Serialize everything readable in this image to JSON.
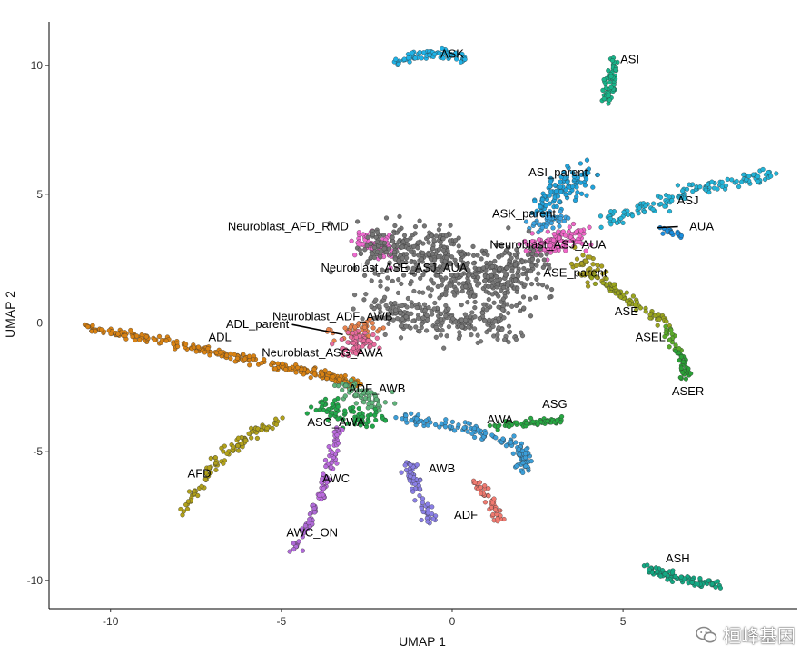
{
  "chart_data": {
    "type": "scatter",
    "title": "",
    "xlabel": "UMAP 1",
    "ylabel": "UMAP 2",
    "xlim": [
      -11.8,
      10.1
    ],
    "ylim": [
      -11.1,
      11.7
    ],
    "xticks": [
      -10,
      -5,
      0,
      5
    ],
    "yticks": [
      -10,
      -5,
      0,
      5,
      10
    ],
    "grid": false,
    "legend": "none",
    "clusters": [
      {
        "label": "ASK",
        "color": "#1fb2e6",
        "label_pos": [
          0,
          10.3
        ],
        "path": [
          [
            -1.8,
            10.1
          ],
          [
            -1.0,
            10.4
          ],
          [
            -0.3,
            10.5
          ],
          [
            0.4,
            10.2
          ]
        ],
        "spread": 0.1,
        "n": 80
      },
      {
        "label": "ASI",
        "color": "#17b58a",
        "label_pos": [
          5.2,
          10.1
        ],
        "path": [
          [
            4.7,
            10.3
          ],
          [
            4.65,
            9.4
          ],
          [
            4.55,
            8.6
          ]
        ],
        "spread": 0.1,
        "n": 60
      },
      {
        "label": "ASJ",
        "color": "#22b4d8",
        "label_pos": [
          6.9,
          4.6
        ],
        "path": [
          [
            4.5,
            4.0
          ],
          [
            6.0,
            4.6
          ],
          [
            7.5,
            5.3
          ],
          [
            9.5,
            5.8
          ]
        ],
        "spread": 0.12,
        "n": 140
      },
      {
        "label": "AUA",
        "color": "#1a8fe0",
        "label_pos": [
          7.3,
          3.6
        ],
        "path": [
          [
            6.1,
            3.7
          ],
          [
            6.7,
            3.45
          ]
        ],
        "spread": 0.08,
        "n": 20
      },
      {
        "label": "ASI_parent",
        "color": "#1fa3dc",
        "label_pos": [
          3.1,
          5.7
        ],
        "path": [
          [
            2.6,
            4.2
          ],
          [
            3.2,
            5.2
          ],
          [
            3.8,
            5.7
          ]
        ],
        "spread": 0.25,
        "n": 120
      },
      {
        "label": "ASK_parent",
        "color": "#3aa2e0",
        "label_pos": [
          2.1,
          4.1
        ],
        "path": [
          [
            2.5,
            3.7
          ],
          [
            3.0,
            4.1
          ]
        ],
        "spread": 0.2,
        "n": 40
      },
      {
        "label": "Neuroblast_ASJ_AUA",
        "color": "#f066c8",
        "label_pos": [
          2.8,
          2.9
        ],
        "path": [
          [
            2.2,
            2.9
          ],
          [
            2.9,
            3.1
          ],
          [
            3.7,
            3.5
          ]
        ],
        "spread": 0.22,
        "n": 120
      },
      {
        "label": "ASE_parent",
        "color": "#a8a020",
        "label_pos": [
          3.6,
          1.8
        ],
        "path": [
          [
            3.6,
            2.5
          ],
          [
            4.2,
            1.8
          ]
        ],
        "spread": 0.2,
        "n": 40
      },
      {
        "label": "ASE",
        "color": "#9aa51e",
        "label_pos": [
          5.1,
          0.3
        ],
        "path": [
          [
            4.2,
            1.8
          ],
          [
            5.3,
            0.8
          ],
          [
            6.2,
            0.0
          ]
        ],
        "spread": 0.1,
        "n": 70
      },
      {
        "label": "ASEL",
        "color": "#5aa92a",
        "label_pos": [
          5.8,
          -0.7
        ],
        "path": [
          [
            6.2,
            -0.1
          ],
          [
            6.6,
            -1.1
          ]
        ],
        "spread": 0.08,
        "n": 25
      },
      {
        "label": "ASER",
        "color": "#2aa035",
        "label_pos": [
          6.9,
          -2.8
        ],
        "path": [
          [
            6.6,
            -1.1
          ],
          [
            6.9,
            -2.1
          ]
        ],
        "spread": 0.08,
        "n": 30
      },
      {
        "label": "Neuroblast_AFD_RMD",
        "color": "#ef6ad0",
        "label_pos": [
          -4.8,
          3.6
        ],
        "path": [
          [
            -2.6,
            3.2
          ],
          [
            -2.2,
            3.0
          ],
          [
            -1.8,
            2.7
          ]
        ],
        "spread": 0.25,
        "n": 70
      },
      {
        "label": "Neuroblast_ASE_ASJ_AUA",
        "color": "#757575",
        "label_pos": [
          -1.7,
          2.0
        ],
        "path": [
          [
            -2.2,
            3.0
          ],
          [
            -1.0,
            2.6
          ],
          [
            0.3,
            2.0
          ],
          [
            1.2,
            1.4
          ],
          [
            2.2,
            2.4
          ]
        ],
        "spread": 0.55,
        "n": 600
      },
      {
        "label": "Neuroblast_ADF_AWB",
        "color": "#7a7a7a",
        "label_pos": [
          -3.5,
          0.1
        ],
        "path": [
          [
            -2.2,
            0.6
          ],
          [
            -1.0,
            0.3
          ],
          [
            0.5,
            0.0
          ],
          [
            1.6,
            -0.1
          ]
        ],
        "spread": 0.35,
        "n": 250
      },
      {
        "label": "ADL_parent",
        "color": "#e8824c",
        "label_pos": [
          -5.7,
          -0.2
        ],
        "path": [
          [
            -3.3,
            -0.5
          ],
          [
            -2.8,
            -0.3
          ],
          [
            -2.4,
            -0.1
          ]
        ],
        "spread": 0.2,
        "n": 50
      },
      {
        "label": "Neuroblast_ASG_AWA",
        "color": "#ea6c9e",
        "label_pos": [
          -3.8,
          -1.3
        ],
        "path": [
          [
            -3.0,
            -1.0
          ],
          [
            -2.5,
            -0.6
          ]
        ],
        "spread": 0.22,
        "n": 60
      },
      {
        "label": "ADL",
        "color": "#d98212",
        "label_pos": [
          -6.8,
          -0.7
        ],
        "path": [
          [
            -10.7,
            -0.2
          ],
          [
            -8.5,
            -0.7
          ],
          [
            -6.0,
            -1.4
          ],
          [
            -3.8,
            -2.0
          ],
          [
            -2.8,
            -2.4
          ]
        ],
        "spread": 0.09,
        "n": 280
      },
      {
        "label": "ADF_AWB",
        "color": "#5fb37a",
        "label_pos": [
          -2.2,
          -2.7
        ],
        "path": [
          [
            -3.2,
            -2.4
          ],
          [
            -2.6,
            -2.8
          ],
          [
            -2.0,
            -3.2
          ]
        ],
        "spread": 0.18,
        "n": 60
      },
      {
        "label": "ASG_AWA",
        "color": "#21a84a",
        "label_pos": [
          -3.4,
          -4.0
        ],
        "path": [
          [
            -3.9,
            -3.2
          ],
          [
            -3.0,
            -3.6
          ],
          [
            -2.2,
            -3.8
          ]
        ],
        "spread": 0.2,
        "n": 80
      },
      {
        "label": "AFD",
        "color": "#b1a11a",
        "label_pos": [
          -7.4,
          -6.0
        ],
        "path": [
          [
            -5.0,
            -3.7
          ],
          [
            -6.1,
            -4.5
          ],
          [
            -7.0,
            -5.5
          ],
          [
            -8.0,
            -7.5
          ]
        ],
        "spread": 0.09,
        "n": 110
      },
      {
        "label": "AWC",
        "color": "#bb6bde",
        "label_pos": [
          -3.4,
          -6.2
        ],
        "path": [
          [
            -3.3,
            -4.1
          ],
          [
            -3.6,
            -5.6
          ],
          [
            -3.9,
            -6.9
          ]
        ],
        "spread": 0.08,
        "n": 70
      },
      {
        "label": "AWC_ON",
        "color": "#b06ad8",
        "label_pos": [
          -4.1,
          -8.3
        ],
        "path": [
          [
            -3.9,
            -6.9
          ],
          [
            -4.6,
            -8.8
          ]
        ],
        "spread": 0.07,
        "n": 40
      },
      {
        "label": "AWB",
        "color": "#8a7fe6",
        "label_pos": [
          -0.3,
          -5.8
        ],
        "path": [
          [
            -1.3,
            -5.4
          ],
          [
            -1.0,
            -6.6
          ],
          [
            -0.6,
            -7.7
          ]
        ],
        "spread": 0.1,
        "n": 70
      },
      {
        "label": "ADF",
        "color": "#f07a70",
        "label_pos": [
          0.4,
          -7.6
        ],
        "path": [
          [
            0.6,
            -6.1
          ],
          [
            1.1,
            -6.9
          ],
          [
            1.4,
            -7.7
          ]
        ],
        "spread": 0.08,
        "n": 50
      },
      {
        "label": "ASG",
        "color": "#3b9ed8",
        "label_pos": [
          3.0,
          -3.3
        ],
        "path": [
          [
            -1.4,
            -3.7
          ],
          [
            0.4,
            -4.1
          ],
          [
            2.0,
            -4.8
          ],
          [
            2.1,
            -5.7
          ]
        ],
        "spread": 0.1,
        "n": 150
      },
      {
        "label": "AWA",
        "color": "#27a842",
        "label_pos": [
          1.4,
          -3.9
        ],
        "path": [
          [
            1.0,
            -4.0
          ],
          [
            2.2,
            -3.9
          ],
          [
            3.2,
            -3.8
          ]
        ],
        "spread": 0.07,
        "n": 60
      },
      {
        "label": "ASH",
        "color": "#13a883",
        "label_pos": [
          6.6,
          -9.3
        ],
        "path": [
          [
            5.6,
            -9.5
          ],
          [
            6.5,
            -9.9
          ],
          [
            7.8,
            -10.2
          ]
        ],
        "spread": 0.08,
        "n": 90
      }
    ]
  },
  "watermark": {
    "text": "桓峰基因",
    "icon": "wechat-icon"
  }
}
